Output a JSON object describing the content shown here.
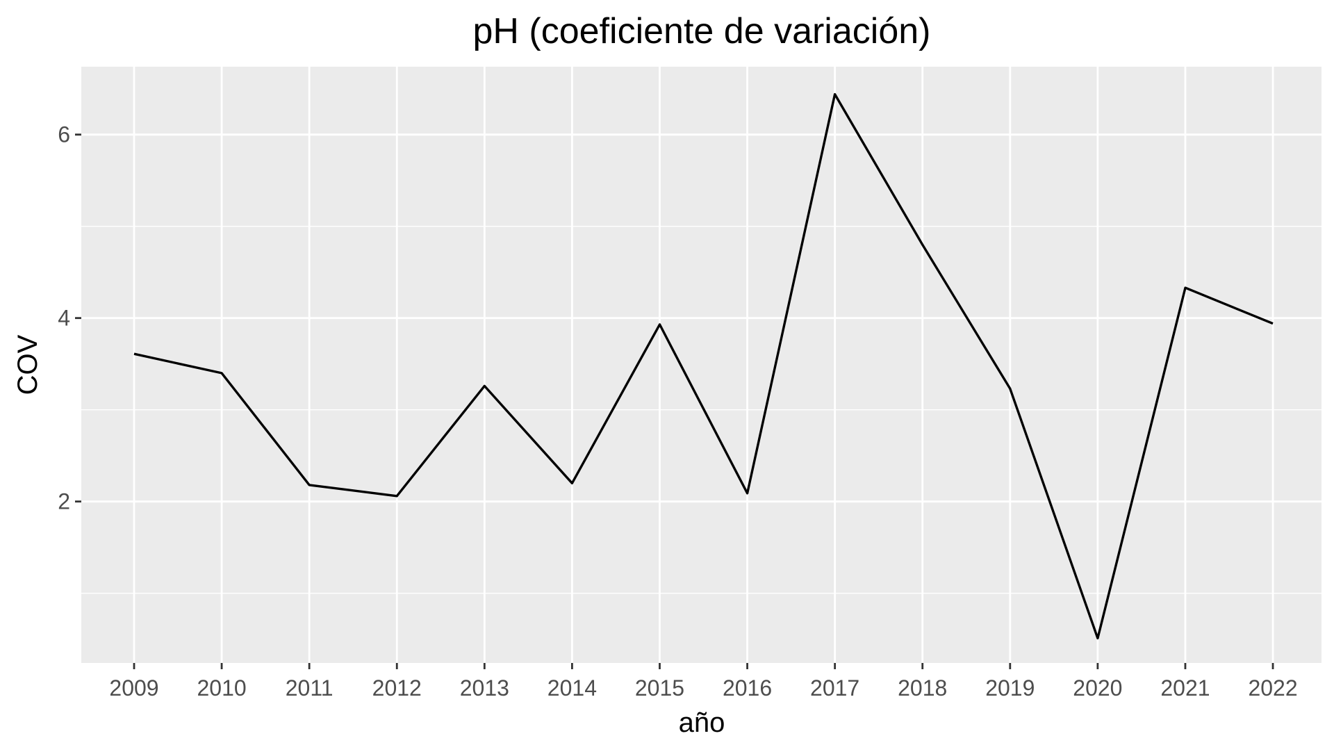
{
  "chart_data": {
    "type": "line",
    "title": "pH (coeficiente de variación)",
    "xlabel": "año",
    "ylabel": "COV",
    "categories": [
      "2009",
      "2010",
      "2011",
      "2012",
      "2013",
      "2014",
      "2015",
      "2016",
      "2017",
      "2018",
      "2019",
      "2020",
      "2021",
      "2022"
    ],
    "series": [
      {
        "values": [
          3.61,
          3.4,
          2.18,
          2.06,
          3.26,
          2.2,
          3.93,
          2.09,
          6.44,
          4.8,
          3.23,
          0.51,
          4.33,
          3.94
        ]
      }
    ],
    "ylim": [
      0.24,
      6.74
    ],
    "y_ticks": [
      2,
      4,
      6
    ],
    "y_minor_ticks": [
      1,
      3,
      5
    ],
    "grid": true,
    "legend": "none",
    "colors": {
      "panel_background": "#ebebeb",
      "grid": "#ffffff",
      "line": "#000000",
      "tick_text": "#4d4d4d",
      "tick_mark": "#333333"
    }
  }
}
